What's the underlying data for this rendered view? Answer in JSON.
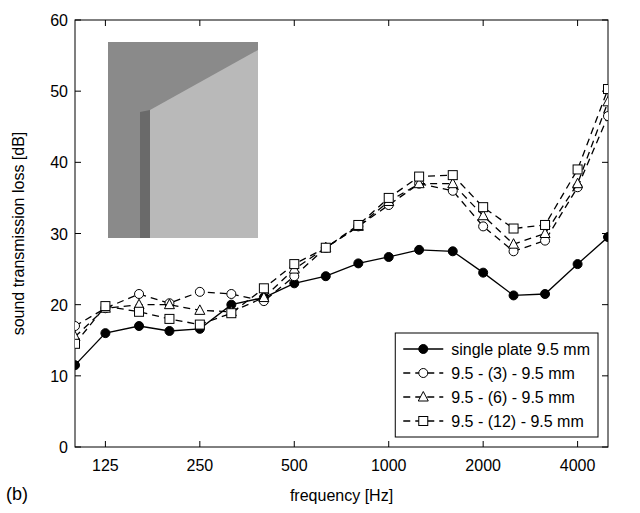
{
  "chart_data": {
    "type": "line",
    "panel": "(b)",
    "x_label": "frequency [Hz]",
    "y_label": "sound transmission loss [dB]",
    "log": "x",
    "grid": false,
    "legend": "lower right",
    "xlim": [
      100,
      5000
    ],
    "ylim": [
      0,
      60
    ],
    "xticks": [
      125,
      250,
      500,
      1000,
      2000,
      4000
    ],
    "yticks": [
      0,
      10,
      20,
      30,
      40,
      50,
      60
    ],
    "x": [
      100,
      125,
      160,
      200,
      250,
      315,
      400,
      500,
      630,
      800,
      1000,
      1250,
      1600,
      2000,
      2500,
      3150,
      4000,
      5000
    ],
    "series": [
      {
        "name": "single plate 9.5 mm",
        "color": "#000000",
        "marker": "circle",
        "line_style": "solid",
        "values": [
          11.5,
          16,
          17,
          16.3,
          16.6,
          20,
          21,
          23,
          24,
          25.8,
          26.7,
          27.7,
          27.5,
          24.5,
          21.3,
          21.5,
          25.7,
          29.5
        ]
      },
      {
        "name": "9.5 - (3) - 9.5 mm",
        "color": "#000000",
        "marker": "circle-open",
        "line_style": "dashed",
        "values": [
          17,
          19.5,
          21.5,
          20.2,
          21.8,
          21.5,
          20.5,
          24,
          28,
          31,
          34,
          37,
          36,
          31,
          27.5,
          29,
          36.5,
          46.5
        ]
      },
      {
        "name": "9.5 - (6) - 9.5 mm",
        "color": "#000000",
        "marker": "triangle-open",
        "line_style": "dashed",
        "values": [
          15.5,
          19.5,
          20,
          20,
          19.2,
          19,
          21,
          25,
          28,
          31,
          34.5,
          37,
          37,
          32.5,
          28.5,
          30,
          37,
          48.5
        ]
      },
      {
        "name": "9.5 - (12) - 9.5 mm",
        "color": "#000000",
        "marker": "square-open",
        "line_style": "dashed",
        "values": [
          14.5,
          19.8,
          19,
          18,
          17.2,
          18.8,
          22.3,
          25.7,
          28,
          31.2,
          35,
          38,
          38.2,
          33.7,
          30.7,
          31.2,
          39,
          50.3
        ]
      }
    ]
  }
}
